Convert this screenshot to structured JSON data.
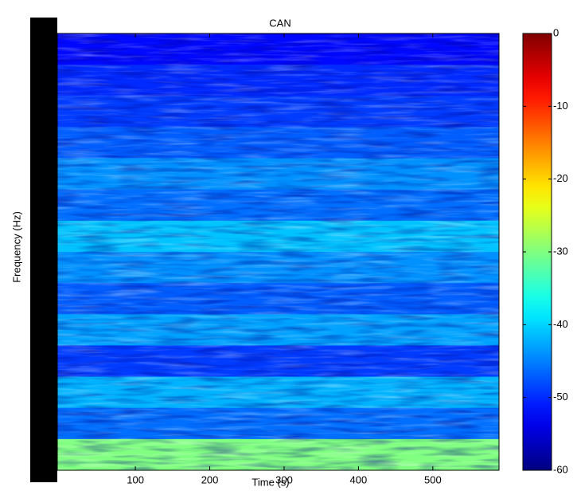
{
  "chart_data": {
    "type": "heatmap",
    "title": "CAN",
    "x_label": "Time (s)",
    "y_label": "Frequency (Hz)",
    "xlim": [
      -5,
      589
    ],
    "xticks": [
      100,
      200,
      300,
      400,
      500
    ],
    "categories": [
      null,
      null,
      null,
      null,
      null,
      null,
      null,
      null,
      null,
      null,
      null,
      null,
      null,
      null
    ],
    "values": [
      -52,
      -50,
      -49,
      -47,
      -44,
      -46,
      -41,
      -44,
      -47,
      -43,
      -49,
      -42,
      -46,
      -30
    ],
    "colormap": "jet",
    "clim": [
      -60,
      0
    ],
    "colorbar_ticks": [
      0,
      -10,
      -20,
      -30,
      -40,
      -50,
      -60
    ]
  }
}
